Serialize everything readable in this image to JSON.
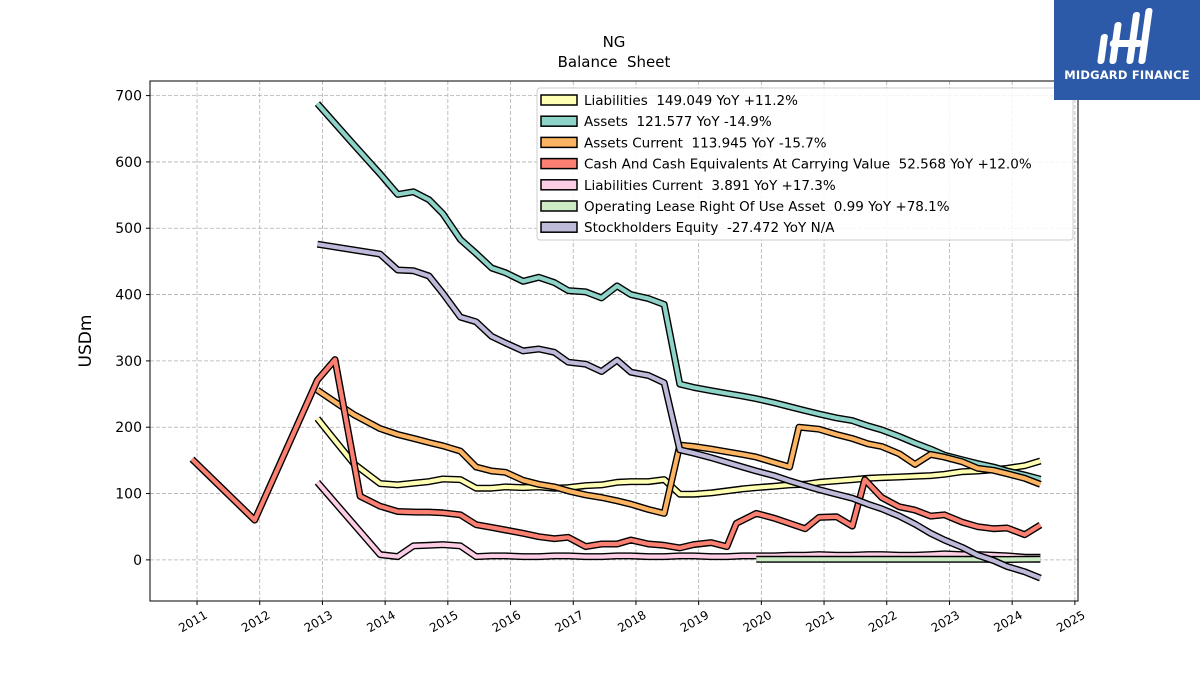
{
  "logo": {
    "text": "MIDGARD FINANCE"
  },
  "chart_data": {
    "type": "line",
    "title": "NG",
    "subtitle": "Balance  Sheet",
    "ylabel": "USDm",
    "xlabel": "",
    "xlim": [
      2010.25,
      2025.05
    ],
    "ylim": [
      -62,
      722
    ],
    "x_ticks": [
      2011,
      2012,
      2013,
      2014,
      2015,
      2016,
      2017,
      2018,
      2019,
      2020,
      2021,
      2022,
      2023,
      2024,
      2025
    ],
    "y_ticks": [
      0,
      100,
      200,
      300,
      400,
      500,
      600,
      700
    ],
    "grid": true,
    "legend_position": "top-center",
    "series": [
      {
        "name": "Liabilities  149.049 YoY +11.2%",
        "color": "#ffffb3",
        "points": [
          [
            2012.92,
            213
          ],
          [
            2013.2,
            180
          ],
          [
            2013.5,
            145
          ],
          [
            2013.92,
            115
          ],
          [
            2014.2,
            113
          ],
          [
            2014.5,
            116
          ],
          [
            2014.7,
            118
          ],
          [
            2014.92,
            122
          ],
          [
            2015.2,
            121
          ],
          [
            2015.45,
            108
          ],
          [
            2015.7,
            108
          ],
          [
            2015.92,
            110
          ],
          [
            2016.2,
            109
          ],
          [
            2016.45,
            110
          ],
          [
            2016.7,
            108
          ],
          [
            2016.92,
            109
          ],
          [
            2017.2,
            112
          ],
          [
            2017.45,
            113
          ],
          [
            2017.7,
            117
          ],
          [
            2017.92,
            118
          ],
          [
            2018.2,
            118
          ],
          [
            2018.45,
            121
          ],
          [
            2018.7,
            99
          ],
          [
            2018.92,
            99
          ],
          [
            2019.2,
            101
          ],
          [
            2019.45,
            104
          ],
          [
            2019.7,
            107
          ],
          [
            2019.92,
            109
          ],
          [
            2020.2,
            111
          ],
          [
            2020.45,
            113
          ],
          [
            2020.7,
            114
          ],
          [
            2020.92,
            117
          ],
          [
            2021.2,
            119
          ],
          [
            2021.45,
            121
          ],
          [
            2021.7,
            123
          ],
          [
            2021.92,
            124
          ],
          [
            2022.2,
            125
          ],
          [
            2022.45,
            126
          ],
          [
            2022.7,
            127
          ],
          [
            2022.92,
            129
          ],
          [
            2023.2,
            133
          ],
          [
            2023.45,
            134
          ],
          [
            2023.7,
            136
          ],
          [
            2023.92,
            138
          ],
          [
            2024.2,
            142
          ],
          [
            2024.45,
            149.049
          ]
        ]
      },
      {
        "name": "Assets  121.577 YoY -14.9%",
        "color": "#8dd3c7",
        "points": [
          [
            2012.92,
            688
          ],
          [
            2013.5,
            626
          ],
          [
            2013.92,
            582
          ],
          [
            2014.2,
            551
          ],
          [
            2014.45,
            555
          ],
          [
            2014.7,
            543
          ],
          [
            2014.92,
            522
          ],
          [
            2015.2,
            483
          ],
          [
            2015.45,
            462
          ],
          [
            2015.7,
            440
          ],
          [
            2015.92,
            433
          ],
          [
            2016.2,
            420
          ],
          [
            2016.45,
            426
          ],
          [
            2016.7,
            418
          ],
          [
            2016.92,
            406
          ],
          [
            2017.2,
            404
          ],
          [
            2017.45,
            395
          ],
          [
            2017.7,
            413
          ],
          [
            2017.92,
            400
          ],
          [
            2018.2,
            394
          ],
          [
            2018.45,
            385
          ],
          [
            2018.7,
            265
          ],
          [
            2018.92,
            260
          ],
          [
            2019.2,
            255
          ],
          [
            2019.45,
            251
          ],
          [
            2019.7,
            247
          ],
          [
            2019.92,
            243
          ],
          [
            2020.2,
            237
          ],
          [
            2020.45,
            231
          ],
          [
            2020.7,
            225
          ],
          [
            2020.92,
            220
          ],
          [
            2021.2,
            214
          ],
          [
            2021.45,
            210
          ],
          [
            2021.7,
            202
          ],
          [
            2021.92,
            196
          ],
          [
            2022.2,
            186
          ],
          [
            2022.45,
            176
          ],
          [
            2022.7,
            167
          ],
          [
            2022.92,
            158
          ],
          [
            2023.2,
            151
          ],
          [
            2023.45,
            145
          ],
          [
            2023.7,
            140
          ],
          [
            2023.92,
            134
          ],
          [
            2024.2,
            128
          ],
          [
            2024.45,
            121.577
          ]
        ]
      },
      {
        "name": "Assets Current  113.945 YoY -15.7%",
        "color": "#fdb462",
        "points": [
          [
            2012.92,
            256
          ],
          [
            2013.2,
            238
          ],
          [
            2013.5,
            219
          ],
          [
            2013.92,
            198
          ],
          [
            2014.2,
            189
          ],
          [
            2014.5,
            182
          ],
          [
            2014.7,
            177
          ],
          [
            2014.92,
            172
          ],
          [
            2015.2,
            164
          ],
          [
            2015.45,
            140
          ],
          [
            2015.7,
            134
          ],
          [
            2015.92,
            132
          ],
          [
            2016.2,
            120
          ],
          [
            2016.45,
            114
          ],
          [
            2016.7,
            110
          ],
          [
            2016.92,
            104
          ],
          [
            2017.2,
            98
          ],
          [
            2017.45,
            94
          ],
          [
            2017.7,
            89
          ],
          [
            2017.92,
            84
          ],
          [
            2018.2,
            76
          ],
          [
            2018.45,
            70
          ],
          [
            2018.7,
            173
          ],
          [
            2018.92,
            171
          ],
          [
            2019.2,
            167
          ],
          [
            2019.45,
            163
          ],
          [
            2019.7,
            159
          ],
          [
            2019.92,
            155
          ],
          [
            2020.2,
            147
          ],
          [
            2020.45,
            140
          ],
          [
            2020.6,
            200
          ],
          [
            2020.92,
            197
          ],
          [
            2021.2,
            189
          ],
          [
            2021.45,
            183
          ],
          [
            2021.7,
            175
          ],
          [
            2021.92,
            171
          ],
          [
            2022.2,
            160
          ],
          [
            2022.45,
            144
          ],
          [
            2022.7,
            159
          ],
          [
            2022.92,
            155
          ],
          [
            2023.2,
            148
          ],
          [
            2023.45,
            138
          ],
          [
            2023.7,
            135
          ],
          [
            2023.92,
            130
          ],
          [
            2024.2,
            123
          ],
          [
            2024.45,
            113.945
          ]
        ]
      },
      {
        "name": "Cash And Cash Equivalents At Carrying Value  52.568 YoY +12.0%",
        "color": "#fb8072",
        "points": [
          [
            2010.92,
            152
          ],
          [
            2011.92,
            60
          ],
          [
            2012.92,
            271
          ],
          [
            2013.2,
            302
          ],
          [
            2013.6,
            96
          ],
          [
            2013.92,
            81
          ],
          [
            2014.2,
            73
          ],
          [
            2014.5,
            72
          ],
          [
            2014.7,
            72
          ],
          [
            2014.92,
            71
          ],
          [
            2015.2,
            68
          ],
          [
            2015.45,
            53
          ],
          [
            2015.7,
            49
          ],
          [
            2015.92,
            45
          ],
          [
            2016.2,
            40
          ],
          [
            2016.45,
            35
          ],
          [
            2016.7,
            32
          ],
          [
            2016.92,
            34
          ],
          [
            2017.2,
            20
          ],
          [
            2017.45,
            24
          ],
          [
            2017.7,
            24
          ],
          [
            2017.92,
            30
          ],
          [
            2018.2,
            24
          ],
          [
            2018.45,
            22
          ],
          [
            2018.7,
            18
          ],
          [
            2018.92,
            23
          ],
          [
            2019.2,
            26
          ],
          [
            2019.45,
            20
          ],
          [
            2019.6,
            55
          ],
          [
            2019.92,
            70
          ],
          [
            2020.2,
            63
          ],
          [
            2020.45,
            55
          ],
          [
            2020.7,
            47
          ],
          [
            2020.92,
            64
          ],
          [
            2021.2,
            65
          ],
          [
            2021.45,
            51
          ],
          [
            2021.65,
            121
          ],
          [
            2021.92,
            94
          ],
          [
            2022.2,
            80
          ],
          [
            2022.45,
            75
          ],
          [
            2022.7,
            66
          ],
          [
            2022.92,
            68
          ],
          [
            2023.2,
            57
          ],
          [
            2023.45,
            50
          ],
          [
            2023.7,
            47
          ],
          [
            2023.92,
            48
          ],
          [
            2024.2,
            38
          ],
          [
            2024.45,
            52.568
          ]
        ]
      },
      {
        "name": "Liabilities Current  3.891 YoY +17.3%",
        "color": "#fccde5",
        "points": [
          [
            2012.92,
            117
          ],
          [
            2013.92,
            8
          ],
          [
            2014.2,
            5
          ],
          [
            2014.45,
            21
          ],
          [
            2014.7,
            22
          ],
          [
            2014.92,
            23
          ],
          [
            2015.2,
            21
          ],
          [
            2015.45,
            5
          ],
          [
            2015.7,
            6
          ],
          [
            2015.92,
            6
          ],
          [
            2016.2,
            5
          ],
          [
            2016.45,
            5
          ],
          [
            2016.7,
            6
          ],
          [
            2016.92,
            6
          ],
          [
            2017.2,
            5
          ],
          [
            2017.45,
            5
          ],
          [
            2017.7,
            6
          ],
          [
            2017.92,
            6
          ],
          [
            2018.2,
            5
          ],
          [
            2018.45,
            5
          ],
          [
            2018.7,
            6
          ],
          [
            2018.92,
            6
          ],
          [
            2019.2,
            5
          ],
          [
            2019.45,
            5
          ],
          [
            2019.7,
            6
          ],
          [
            2019.92,
            6
          ],
          [
            2020.2,
            6
          ],
          [
            2020.45,
            7
          ],
          [
            2020.7,
            7
          ],
          [
            2020.92,
            8
          ],
          [
            2021.2,
            7
          ],
          [
            2021.45,
            7
          ],
          [
            2021.7,
            8
          ],
          [
            2021.92,
            8
          ],
          [
            2022.2,
            7
          ],
          [
            2022.45,
            7
          ],
          [
            2022.7,
            8
          ],
          [
            2022.92,
            9
          ],
          [
            2023.2,
            8
          ],
          [
            2023.45,
            8
          ],
          [
            2023.7,
            7
          ],
          [
            2023.92,
            6
          ],
          [
            2024.2,
            4
          ],
          [
            2024.45,
            3.891
          ]
        ]
      },
      {
        "name": "Operating Lease Right Of Use Asset  0.99 YoY +78.1%",
        "color": "#ccebc5",
        "points": [
          [
            2019.92,
            0.8
          ],
          [
            2020.2,
            0.8
          ],
          [
            2020.45,
            0.9
          ],
          [
            2020.7,
            0.9
          ],
          [
            2020.92,
            0.9
          ],
          [
            2021.2,
            0.9
          ],
          [
            2021.45,
            0.9
          ],
          [
            2021.7,
            0.9
          ],
          [
            2021.92,
            0.9
          ],
          [
            2022.2,
            0.9
          ],
          [
            2022.45,
            0.9
          ],
          [
            2022.7,
            0.9
          ],
          [
            2022.92,
            0.9
          ],
          [
            2023.2,
            0.9
          ],
          [
            2023.45,
            0.8
          ],
          [
            2023.7,
            0.7
          ],
          [
            2023.92,
            0.6
          ],
          [
            2024.2,
            0.8
          ],
          [
            2024.45,
            0.99
          ]
        ]
      },
      {
        "name": "Stockholders Equity  -27.472 YoY N/A",
        "color": "#bebada",
        "points": [
          [
            2012.92,
            476
          ],
          [
            2013.92,
            461
          ],
          [
            2014.2,
            437
          ],
          [
            2014.45,
            436
          ],
          [
            2014.7,
            428
          ],
          [
            2014.92,
            402
          ],
          [
            2015.2,
            366
          ],
          [
            2015.45,
            359
          ],
          [
            2015.7,
            337
          ],
          [
            2015.92,
            327
          ],
          [
            2016.2,
            315
          ],
          [
            2016.45,
            318
          ],
          [
            2016.7,
            313
          ],
          [
            2016.92,
            298
          ],
          [
            2017.2,
            295
          ],
          [
            2017.45,
            284
          ],
          [
            2017.7,
            301
          ],
          [
            2017.92,
            283
          ],
          [
            2018.2,
            278
          ],
          [
            2018.45,
            267
          ],
          [
            2018.7,
            166
          ],
          [
            2018.92,
            161
          ],
          [
            2019.2,
            154
          ],
          [
            2019.45,
            147
          ],
          [
            2019.7,
            140
          ],
          [
            2019.92,
            134
          ],
          [
            2020.2,
            127
          ],
          [
            2020.45,
            119
          ],
          [
            2020.7,
            112
          ],
          [
            2020.92,
            106
          ],
          [
            2021.2,
            99
          ],
          [
            2021.45,
            93
          ],
          [
            2021.7,
            84
          ],
          [
            2021.92,
            77
          ],
          [
            2022.2,
            66
          ],
          [
            2022.45,
            54
          ],
          [
            2022.7,
            40
          ],
          [
            2022.92,
            30
          ],
          [
            2023.2,
            19
          ],
          [
            2023.45,
            7
          ],
          [
            2023.7,
            -1
          ],
          [
            2023.92,
            -10
          ],
          [
            2024.2,
            -18
          ],
          [
            2024.45,
            -27.472
          ]
        ]
      }
    ]
  }
}
